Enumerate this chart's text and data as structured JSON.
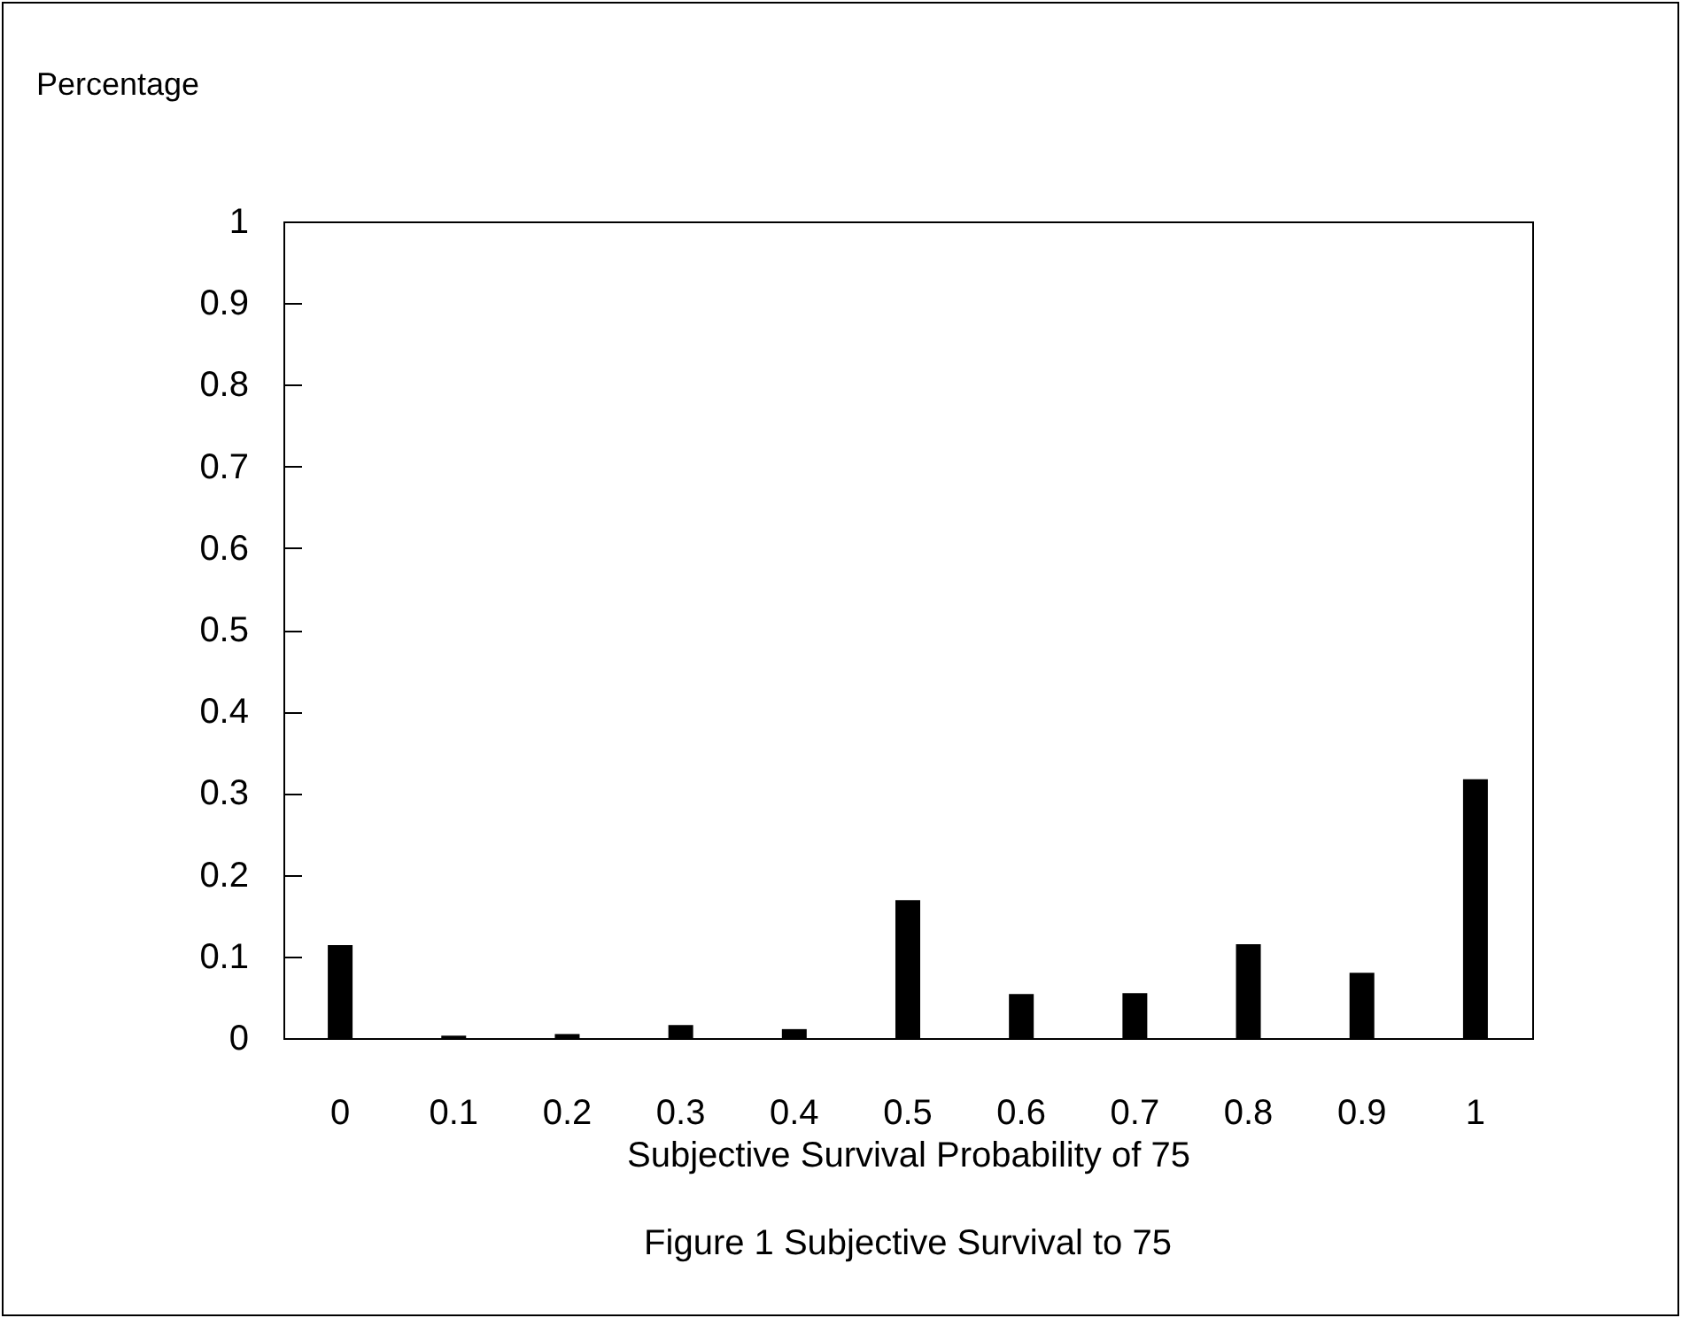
{
  "chart_data": {
    "type": "bar",
    "title": "Figure 1   Subjective Survival to 75",
    "xlabel": "Subjective Survival Probability of 75",
    "ylabel": "Percentage",
    "categories": [
      "0",
      "0.1",
      "0.2",
      "0.3",
      "0.4",
      "0.5",
      "0.6",
      "0.7",
      "0.8",
      "0.9",
      "1"
    ],
    "values": [
      0.114,
      0.003,
      0.005,
      0.016,
      0.011,
      0.169,
      0.054,
      0.055,
      0.115,
      0.08,
      0.317
    ],
    "color": "#000000",
    "ylim": [
      0,
      1
    ],
    "yticks": [
      0,
      0.1,
      0.2,
      0.3,
      0.4,
      0.5,
      0.6,
      0.7,
      0.8,
      0.9,
      1
    ],
    "grid": false
  }
}
